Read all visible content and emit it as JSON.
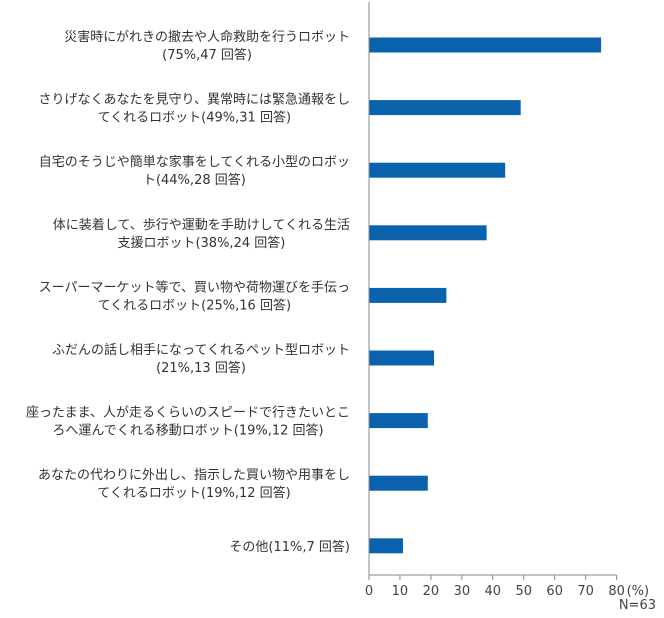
{
  "chart_data": {
    "type": "bar",
    "orientation": "horizontal",
    "categories": [
      [
        "災害時にがれきの撤去や人命救助を行うロボット",
        "(75%,47 回答)"
      ],
      [
        "さりげなくあなたを見守り、異常時には緊急通報をし",
        "てくれるロボット(49%,31 回答)"
      ],
      [
        "自宅のそうじや簡単な家事をしてくれる小型のロボッ",
        "ト(44%,28 回答)"
      ],
      [
        "体に装着して、歩行や運動を手助けしてくれる生活",
        "支援ロボット(38%,24 回答)"
      ],
      [
        "スーパーマーケット等で、買い物や荷物運びを手伝っ",
        "てくれるロボット(25%,16 回答)"
      ],
      [
        "ふだんの話し相手になってくれるペット型ロボット",
        "(21%,13 回答)"
      ],
      [
        "座ったまま、人が走るくらいのスピードで行きたいとこ",
        "ろへ運んでくれる移動ロボット(19%,12 回答)"
      ],
      [
        "あなたの代わりに外出し、指示した買い物や用事をし",
        "てくれるロボット(19%,12 回答)"
      ],
      [
        "その他(11%,7 回答)"
      ]
    ],
    "values": [
      75,
      49,
      44,
      38,
      25,
      21,
      19,
      19,
      11
    ],
    "xlim": [
      0,
      80
    ],
    "xticks": [
      "0",
      "10",
      "20",
      "30",
      "40",
      "50",
      "60",
      "70",
      "80"
    ],
    "unit_label": "(%)",
    "bar_color": "#0a62ad",
    "grid": false
  },
  "note": "N=63"
}
